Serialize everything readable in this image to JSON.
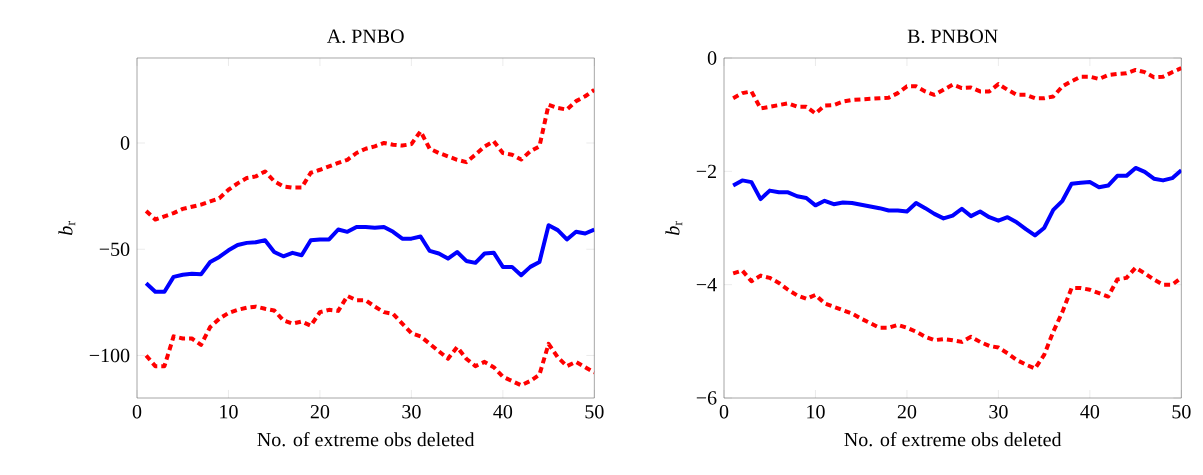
{
  "chart_data": [
    {
      "type": "line",
      "title": "A. PNBO",
      "xlabel": "No. of extreme obs deleted",
      "ylabel": "*b*$_{r}$",
      "x": [
        1,
        2,
        3,
        4,
        5,
        6,
        7,
        8,
        9,
        10,
        11,
        12,
        13,
        14,
        15,
        16,
        17,
        18,
        19,
        20,
        21,
        22,
        23,
        24,
        25,
        26,
        27,
        28,
        29,
        30,
        31,
        32,
        33,
        34,
        35,
        36,
        37,
        38,
        39,
        40,
        41,
        42,
        43,
        44,
        45,
        46,
        47,
        48,
        49,
        50
      ],
      "xlim": [
        0,
        50
      ],
      "xticks": [
        0,
        10,
        20,
        30,
        40,
        50
      ],
      "ylim": [
        -120,
        40
      ],
      "yticks": [
        {
          "value": -100,
          "label": "−100"
        },
        {
          "value": -50,
          "label": "−50"
        },
        0
      ],
      "series": [
        {
          "color": "#ff0000",
          "line_style": "dashed",
          "values": [
            -32,
            -36,
            -34.5,
            -33,
            -31,
            -30,
            -29,
            -27.5,
            -26,
            -22,
            -19,
            -16.5,
            -15.7,
            -13.4,
            -18,
            -20.4,
            -21,
            -21,
            -14,
            -12.6,
            -11,
            -9.4,
            -7.9,
            -4.7,
            -2.7,
            -1.6,
            0,
            -0.8,
            -1.2,
            -0.5,
            5.5,
            -2.7,
            -4.7,
            -6.3,
            -7.9,
            -9,
            -5.5,
            -1.6,
            0.8,
            -4.7,
            -5.5,
            -7.8,
            -3.9,
            -1.6,
            18,
            16.5,
            15.7,
            19.7,
            22,
            25
          ]
        },
        {
          "color": "#0000ff",
          "line_style": "solid",
          "values": [
            -66,
            -70,
            -70,
            -63,
            -62,
            -61.5,
            -61.8,
            -56,
            -53.6,
            -50.5,
            -48,
            -47,
            -46.7,
            -45.8,
            -51.3,
            -53.3,
            -51.7,
            -52.8,
            -45.8,
            -45.4,
            -45.4,
            -40.7,
            -41.8,
            -39.5,
            -39.5,
            -39.9,
            -39.5,
            -41.8,
            -45,
            -45,
            -44,
            -50.8,
            -52,
            -54.4,
            -51.3,
            -55.5,
            -56.4,
            -52,
            -51.6,
            -58.3,
            -58.3,
            -62.2,
            -58.3,
            -56,
            -38.7,
            -41,
            -45.4,
            -41.8,
            -42.6,
            -40.7
          ]
        },
        {
          "color": "#ff0000",
          "line_style": "dashed",
          "values": [
            -100,
            -105,
            -105,
            -91,
            -92,
            -92,
            -95,
            -86.6,
            -82.7,
            -80,
            -78.5,
            -77.5,
            -77,
            -78,
            -78.8,
            -83.5,
            -85,
            -84,
            -86,
            -79.6,
            -78.5,
            -79,
            -72,
            -74,
            -74,
            -77,
            -79.6,
            -80.4,
            -85,
            -89.5,
            -91,
            -94.5,
            -98,
            -101.5,
            -96,
            -101.5,
            -105,
            -103,
            -105.5,
            -110,
            -112,
            -114,
            -112,
            -109,
            -94.5,
            -100.8,
            -105,
            -103,
            -105.5,
            -108
          ]
        }
      ]
    },
    {
      "type": "line",
      "title": "B. PNBON",
      "xlabel": "No. of extreme obs deleted",
      "ylabel": "*b*$_{r}$",
      "x": [
        1,
        2,
        3,
        4,
        5,
        6,
        7,
        8,
        9,
        10,
        11,
        12,
        13,
        14,
        15,
        16,
        17,
        18,
        19,
        20,
        21,
        22,
        23,
        24,
        25,
        26,
        27,
        28,
        29,
        30,
        31,
        32,
        33,
        34,
        35,
        36,
        37,
        38,
        39,
        40,
        41,
        42,
        43,
        44,
        45,
        46,
        47,
        48,
        49,
        50
      ],
      "xlim": [
        0,
        50
      ],
      "xticks": [
        0,
        10,
        20,
        30,
        40,
        50
      ],
      "ylim": [
        -6,
        0
      ],
      "yticks": [
        {
          "value": -6,
          "label": "−6"
        },
        {
          "value": -4,
          "label": "−4"
        },
        {
          "value": -2,
          "label": "−2"
        },
        0
      ],
      "series": [
        {
          "color": "#ff0000",
          "line_style": "dashed",
          "values": [
            -0.71,
            -0.62,
            -0.59,
            -0.89,
            -0.86,
            -0.83,
            -0.8,
            -0.86,
            -0.86,
            -0.98,
            -0.84,
            -0.83,
            -0.77,
            -0.74,
            -0.73,
            -0.72,
            -0.71,
            -0.7,
            -0.62,
            -0.5,
            -0.5,
            -0.59,
            -0.65,
            -0.56,
            -0.47,
            -0.53,
            -0.52,
            -0.59,
            -0.59,
            -0.46,
            -0.56,
            -0.65,
            -0.65,
            -0.71,
            -0.71,
            -0.68,
            -0.5,
            -0.41,
            -0.33,
            -0.33,
            -0.37,
            -0.3,
            -0.28,
            -0.27,
            -0.21,
            -0.25,
            -0.34,
            -0.33,
            -0.25,
            -0.18
          ]
        },
        {
          "color": "#0000ff",
          "line_style": "solid",
          "values": [
            -2.25,
            -2.16,
            -2.19,
            -2.49,
            -2.34,
            -2.37,
            -2.37,
            -2.44,
            -2.47,
            -2.6,
            -2.52,
            -2.58,
            -2.55,
            -2.56,
            -2.59,
            -2.62,
            -2.65,
            -2.69,
            -2.69,
            -2.71,
            -2.56,
            -2.65,
            -2.75,
            -2.83,
            -2.78,
            -2.66,
            -2.79,
            -2.71,
            -2.81,
            -2.87,
            -2.81,
            -2.9,
            -3.02,
            -3.13,
            -3.0,
            -2.68,
            -2.52,
            -2.22,
            -2.2,
            -2.19,
            -2.28,
            -2.25,
            -2.08,
            -2.08,
            -1.94,
            -2.01,
            -2.13,
            -2.16,
            -2.12,
            -1.98
          ]
        },
        {
          "color": "#ff0000",
          "line_style": "dashed",
          "values": [
            -3.8,
            -3.75,
            -3.94,
            -3.84,
            -3.88,
            -3.97,
            -4.09,
            -4.19,
            -4.25,
            -4.18,
            -4.33,
            -4.39,
            -4.45,
            -4.51,
            -4.6,
            -4.68,
            -4.76,
            -4.76,
            -4.71,
            -4.76,
            -4.83,
            -4.92,
            -4.98,
            -4.96,
            -4.98,
            -5.01,
            -4.92,
            -5.01,
            -5.08,
            -5.11,
            -5.21,
            -5.33,
            -5.41,
            -5.48,
            -5.24,
            -4.83,
            -4.48,
            -4.06,
            -4.06,
            -4.09,
            -4.15,
            -4.21,
            -3.91,
            -3.88,
            -3.7,
            -3.8,
            -3.91,
            -4.0,
            -4.0,
            -3.88
          ]
        }
      ]
    }
  ]
}
